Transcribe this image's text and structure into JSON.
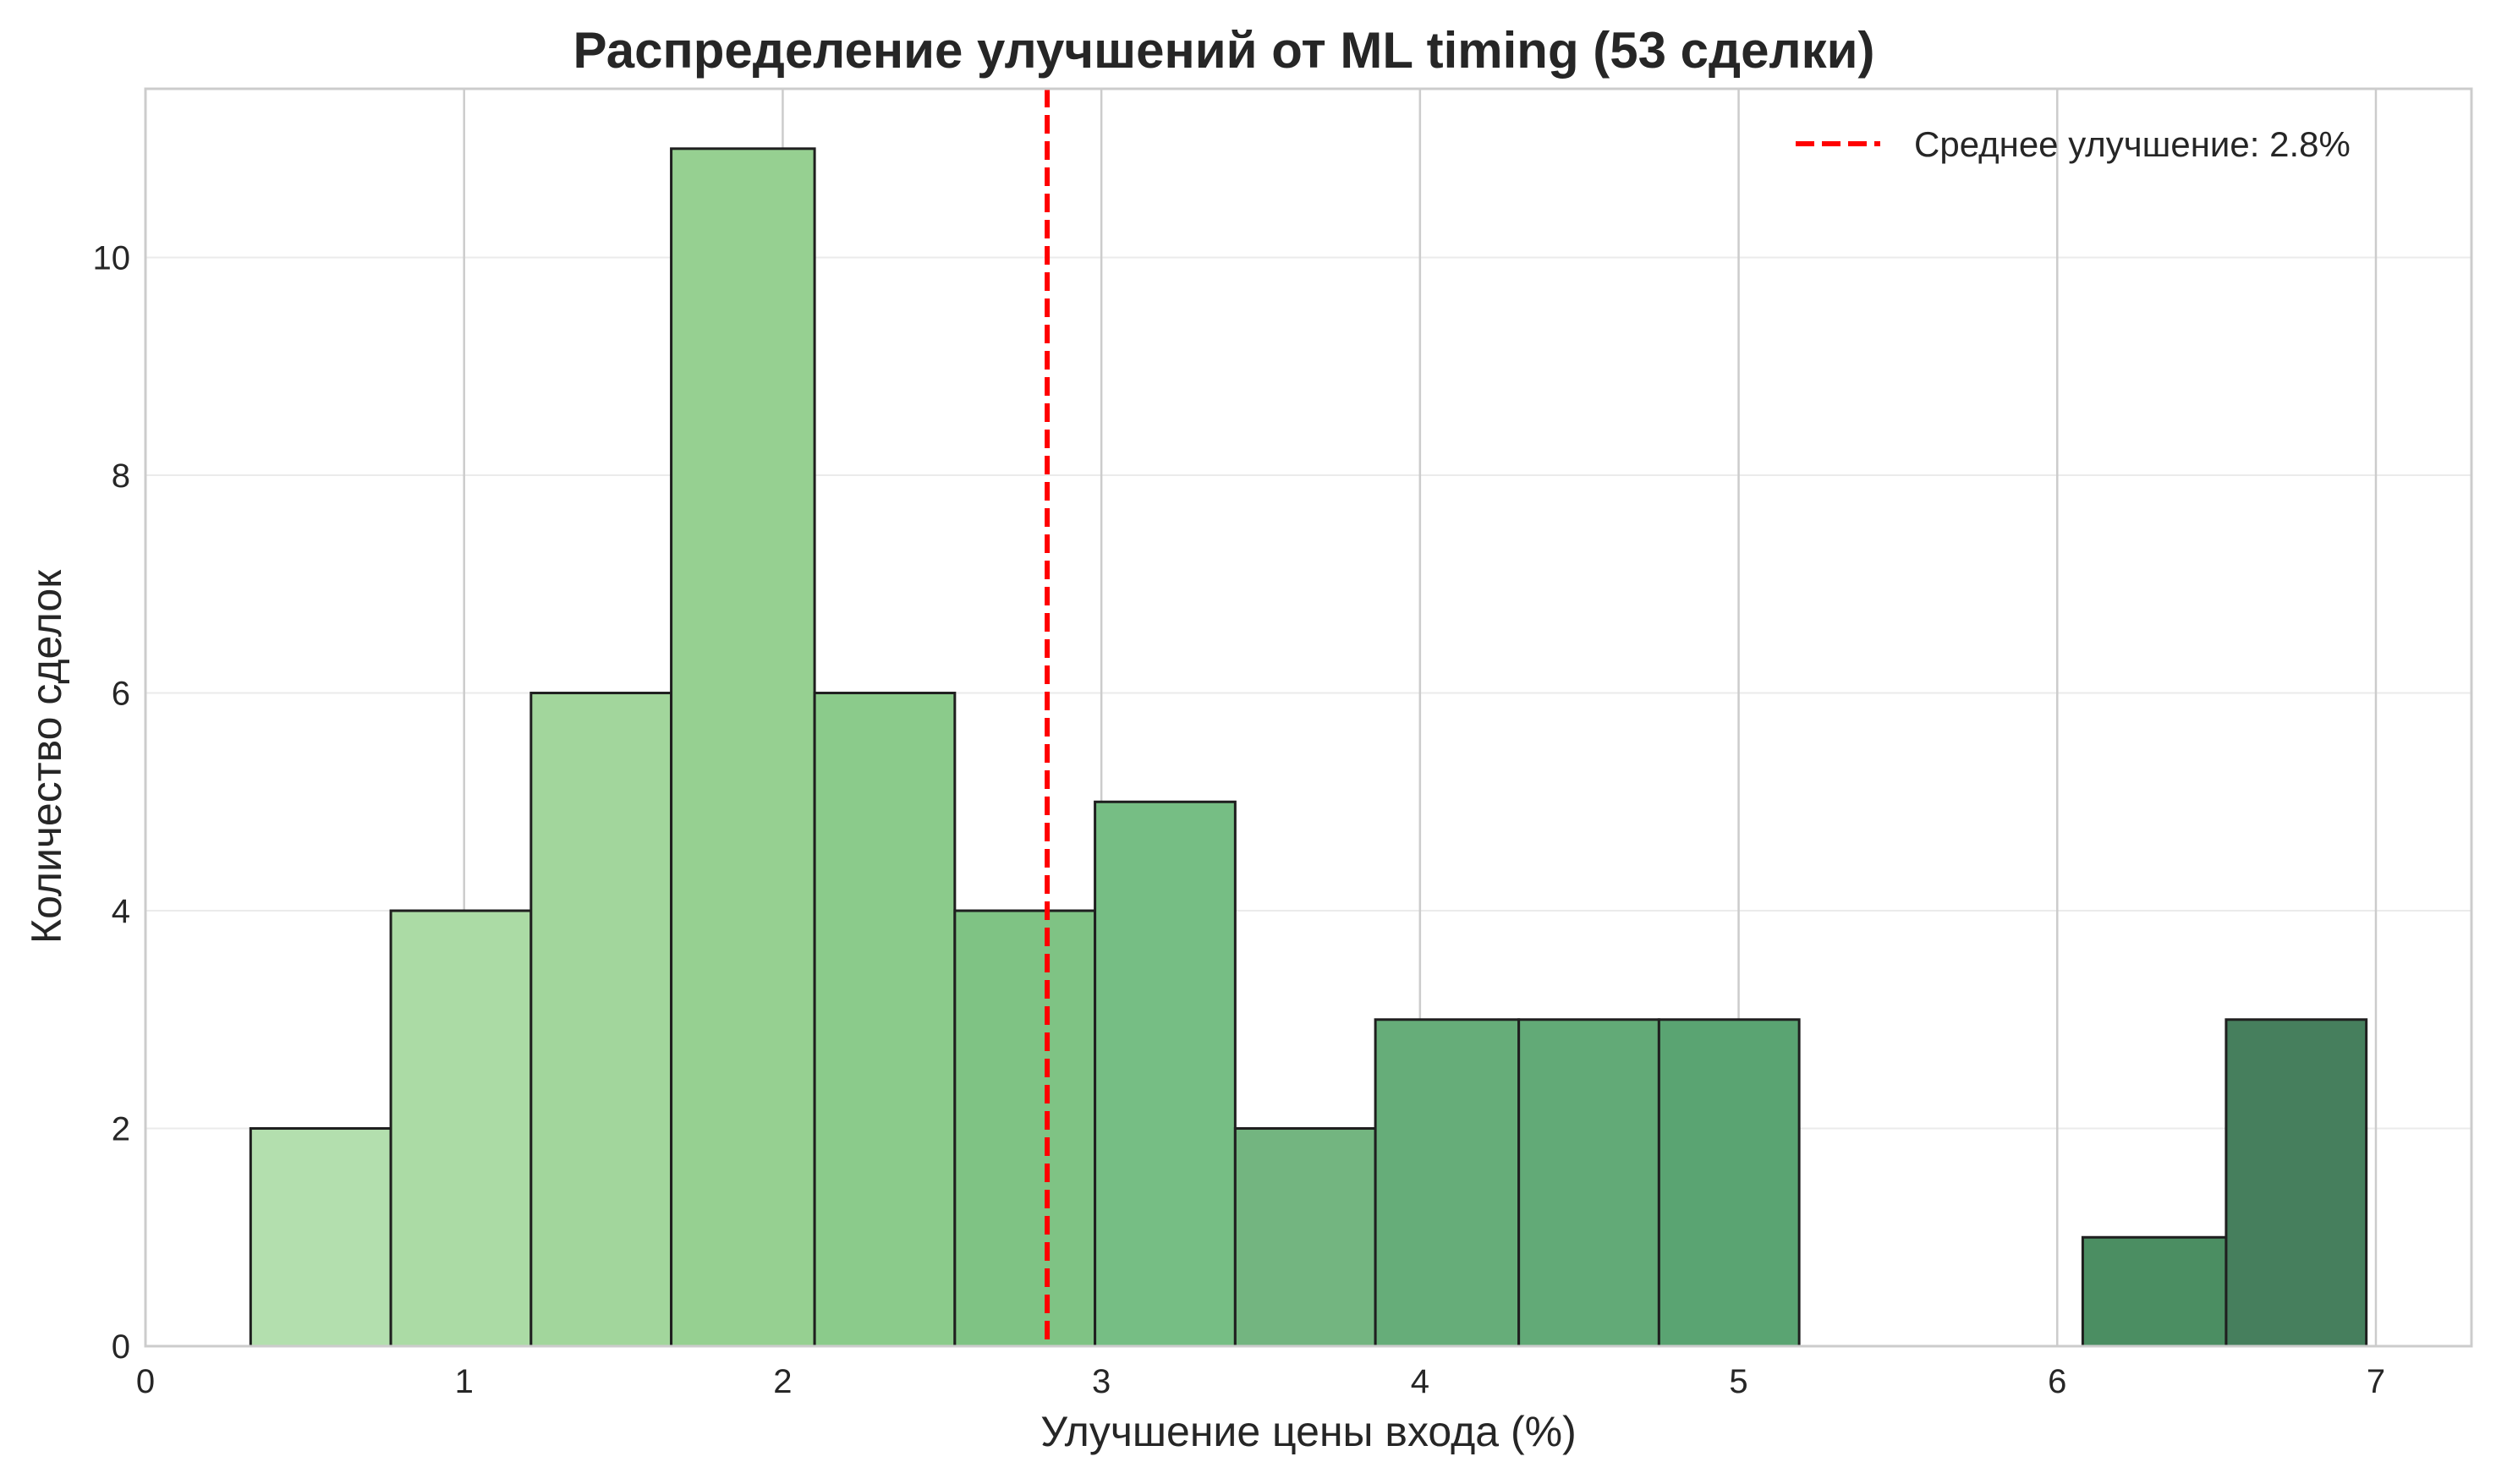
{
  "chart_data": {
    "type": "bar",
    "title": "Распределение улучшений от ML timing (53 сделки)",
    "xlabel": "Улучшение цены входа (%)",
    "ylabel": "Количество сделок",
    "xlim": [
      0,
      7.3
    ],
    "ylim": [
      0,
      11.55
    ],
    "xticks": [
      0,
      1,
      2,
      3,
      4,
      5,
      6,
      7
    ],
    "yticks": [
      0,
      2,
      4,
      6,
      8,
      10
    ],
    "grid": "x-major-visible",
    "legend_position": "top-right",
    "bins": [
      {
        "x0": 0.33,
        "x1": 0.77,
        "count": 2,
        "color": "#b3dfae"
      },
      {
        "x0": 0.77,
        "x1": 1.21,
        "count": 4,
        "color": "#abdba5"
      },
      {
        "x0": 1.21,
        "x1": 1.65,
        "count": 6,
        "color": "#a2d69c"
      },
      {
        "x0": 1.65,
        "x1": 2.1,
        "count": 11,
        "color": "#96d091"
      },
      {
        "x0": 2.1,
        "x1": 2.54,
        "count": 6,
        "color": "#8bcb8b"
      },
      {
        "x0": 2.54,
        "x1": 2.98,
        "count": 4,
        "color": "#7fc384"
      },
      {
        "x0": 2.98,
        "x1": 3.42,
        "count": 5,
        "color": "#76be84"
      },
      {
        "x0": 3.42,
        "x1": 3.86,
        "count": 2,
        "color": "#73b580"
      },
      {
        "x0": 3.86,
        "x1": 4.31,
        "count": 3,
        "color": "#66ad79"
      },
      {
        "x0": 4.31,
        "x1": 4.75,
        "count": 3,
        "color": "#62aa77"
      },
      {
        "x0": 4.75,
        "x1": 5.19,
        "count": 3,
        "color": "#5aa472"
      },
      {
        "x0": 6.08,
        "x1": 6.53,
        "count": 1,
        "color": "#4b8e62"
      },
      {
        "x0": 6.53,
        "x1": 6.97,
        "count": 3,
        "color": "#467f5d"
      }
    ],
    "mean_line": {
      "x": 2.83,
      "color": "#ff0000",
      "label": "Среднее улучшение: 2.8%"
    }
  }
}
